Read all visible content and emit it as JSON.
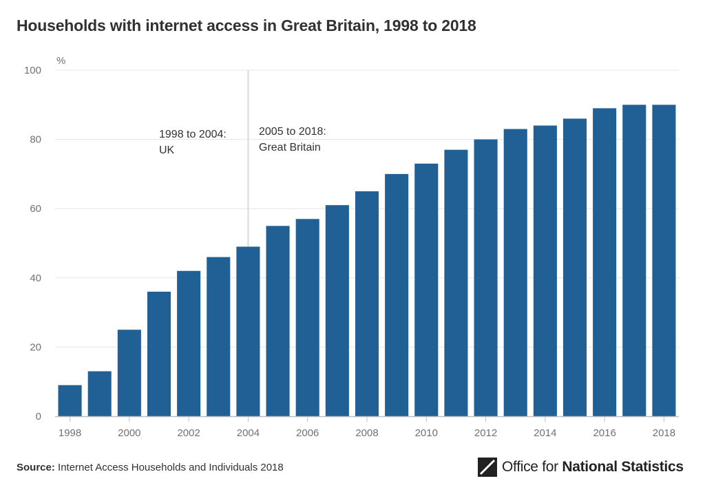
{
  "title": "Households with internet access in Great Britain, 1998 to 2018",
  "chart_data": {
    "type": "bar",
    "ylabel": "%",
    "ylim": [
      0,
      100
    ],
    "yticks": [
      0,
      20,
      40,
      60,
      80,
      100
    ],
    "categories": [
      "1998",
      "1999",
      "2000",
      "2001",
      "2002",
      "2003",
      "2004",
      "2005",
      "2006",
      "2007",
      "2008",
      "2009",
      "2010",
      "2011",
      "2012",
      "2013",
      "2014",
      "2015",
      "2016",
      "2017",
      "2018"
    ],
    "xtick_labels": [
      "1998",
      "2000",
      "2002",
      "2004",
      "2006",
      "2008",
      "2010",
      "2012",
      "2014",
      "2016",
      "2018"
    ],
    "values": [
      9,
      13,
      25,
      36,
      42,
      46,
      49,
      55,
      57,
      61,
      65,
      70,
      73,
      77,
      80,
      83,
      84,
      86,
      89,
      90,
      90
    ],
    "bar_color": "#206095",
    "grid": true,
    "annotations": {
      "left_line1": "1998 to 2004:",
      "left_line2": "UK",
      "right_line1": "2005 to 2018:",
      "right_line2": "Great Britain"
    }
  },
  "footer": {
    "source_label": "Source:",
    "source_text": " Internet Access Households and Individuals 2018",
    "logo_text_regular": "Office for ",
    "logo_text_bold": "National Statistics"
  }
}
